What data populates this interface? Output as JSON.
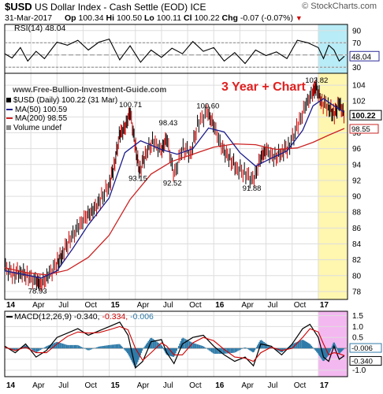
{
  "header": {
    "symbol": "$USD",
    "name": "US Dollar Index - Cash Settle (EOD)",
    "exchange": "ICE",
    "watermark": "© StockCharts.com",
    "date": "31-Mar-2017",
    "op_label": "Op",
    "op": "100.34",
    "hi_label": "Hi",
    "hi": "100.50",
    "lo_label": "Lo",
    "lo": "100.11",
    "cl_label": "Cl",
    "cl": "100.22",
    "chg_label": "Chg",
    "chg": "-0.07 (-0.07%)",
    "chg_symbol": "▼"
  },
  "site": "www.Free-Bullion-Investment-Guide.com",
  "overlay_title": "3 Year + Chart",
  "colors": {
    "price": "#000000",
    "ma50": "#1c1c8c",
    "ma200": "#cc2222",
    "up": "#000000",
    "down": "#cc0000",
    "rsi": "#000000",
    "macd": "#000000",
    "signal": "#cc0000",
    "hist": "#2e7aa8",
    "shade_price": "#fff6b0",
    "shade_rsi": "#b8ecf6",
    "shade_macd": "#f4b8f0",
    "rsi_label_bg": "#2a2a99"
  },
  "chart_data": [
    {
      "type": "line",
      "name": "RSI panel",
      "legend": "RSI(14) 48.04",
      "ylim": [
        20,
        100
      ],
      "yticks": [
        "90",
        "70",
        "50",
        "30"
      ],
      "ytick_values": [
        90,
        70,
        50,
        30
      ],
      "guides": [
        70,
        30
      ],
      "last_label": "48.04",
      "series": [
        {
          "name": "RSI(14)",
          "x": [
            2014.0,
            2014.07,
            2014.15,
            2014.22,
            2014.3,
            2014.38,
            2014.45,
            2014.5,
            2014.6,
            2014.7,
            2014.8,
            2014.9,
            2015.0,
            2015.1,
            2015.2,
            2015.3,
            2015.4,
            2015.5,
            2015.6,
            2015.7,
            2015.8,
            2015.9,
            2016.0,
            2016.1,
            2016.2,
            2016.3,
            2016.4,
            2016.5,
            2016.6,
            2016.7,
            2016.8,
            2016.9,
            2017.0,
            2017.05,
            2017.1,
            2017.15,
            2017.2,
            2017.25
          ],
          "values": [
            52,
            45,
            62,
            40,
            56,
            44,
            60,
            71,
            66,
            74,
            58,
            71,
            76,
            42,
            65,
            38,
            58,
            46,
            61,
            52,
            72,
            56,
            62,
            40,
            54,
            36,
            58,
            49,
            55,
            44,
            74,
            70,
            62,
            44,
            66,
            58,
            40,
            48.04
          ]
        }
      ]
    },
    {
      "type": "line",
      "name": "Price panel",
      "legend": [
        "$USD (Daily) 100.22 (31 Mar)",
        "MA(50) 100.59",
        "MA(200) 98.55",
        "Volume undef"
      ],
      "ylim": [
        77,
        105.5
      ],
      "yticks": [
        "104",
        "102",
        "100",
        "98",
        "96",
        "94",
        "92",
        "90",
        "88",
        "86",
        "84",
        "82",
        "80",
        "78"
      ],
      "ytick_values": [
        104,
        102,
        100,
        98,
        96,
        94,
        92,
        90,
        88,
        86,
        84,
        82,
        80,
        78
      ],
      "shaded_x": [
        2017.0,
        2017.25
      ],
      "last_labels": [
        "100.22",
        "98.55"
      ],
      "annotations": [
        {
          "text": "78.93",
          "x": 2014.33,
          "y": 78.93
        },
        {
          "text": "100.71",
          "x": 2015.2,
          "y": 100.71
        },
        {
          "text": "93.15",
          "x": 2015.29,
          "y": 93.15
        },
        {
          "text": "98.43",
          "x": 2015.58,
          "y": 98.43
        },
        {
          "text": "92.52",
          "x": 2015.62,
          "y": 92.52
        },
        {
          "text": "100.60",
          "x": 2015.94,
          "y": 100.6
        },
        {
          "text": "91.88",
          "x": 2016.38,
          "y": 91.88
        },
        {
          "text": "103.82",
          "x": 2016.98,
          "y": 103.82
        }
      ],
      "series": [
        {
          "name": "$USD",
          "x": [
            2014.0,
            2014.08,
            2014.15,
            2014.22,
            2014.3,
            2014.35,
            2014.42,
            2014.5,
            2014.55,
            2014.62,
            2014.7,
            2014.78,
            2014.85,
            2014.92,
            2015.0,
            2015.05,
            2015.1,
            2015.15,
            2015.2,
            2015.25,
            2015.29,
            2015.35,
            2015.42,
            2015.5,
            2015.55,
            2015.62,
            2015.7,
            2015.78,
            2015.85,
            2015.94,
            2016.0,
            2016.08,
            2016.15,
            2016.22,
            2016.3,
            2016.38,
            2016.45,
            2016.5,
            2016.58,
            2016.65,
            2016.72,
            2016.8,
            2016.88,
            2016.95,
            2016.98,
            2017.03,
            2017.1,
            2017.15,
            2017.2,
            2017.25
          ],
          "values": [
            81.0,
            80.2,
            80.5,
            79.9,
            79.3,
            78.93,
            80.0,
            81.5,
            82.7,
            84.5,
            86.0,
            87.5,
            88.2,
            89.6,
            91.5,
            94.0,
            97.8,
            98.6,
            100.71,
            96.3,
            93.15,
            95.5,
            96.9,
            95.7,
            97.4,
            92.52,
            96.1,
            95.4,
            99.2,
            100.6,
            98.9,
            96.0,
            94.8,
            93.6,
            92.9,
            91.88,
            94.9,
            95.8,
            94.8,
            95.6,
            96.3,
            98.7,
            101.5,
            103.2,
            103.82,
            101.9,
            101.3,
            100.2,
            101.7,
            100.22
          ]
        },
        {
          "name": "MA(50)",
          "x": [
            2014.0,
            2014.2,
            2014.35,
            2014.5,
            2014.65,
            2014.8,
            2015.0,
            2015.15,
            2015.3,
            2015.5,
            2015.65,
            2015.8,
            2015.95,
            2016.1,
            2016.25,
            2016.4,
            2016.55,
            2016.7,
            2016.85,
            2016.95,
            2017.05,
            2017.15,
            2017.25
          ],
          "values": [
            80.6,
            80.1,
            79.7,
            80.6,
            83.4,
            86.4,
            89.8,
            95.5,
            97.0,
            95.9,
            95.3,
            96.0,
            98.6,
            98.1,
            95.5,
            93.8,
            94.8,
            95.7,
            98.3,
            101.4,
            102.3,
            101.4,
            100.59
          ]
        },
        {
          "name": "MA(200)",
          "x": [
            2014.0,
            2014.2,
            2014.4,
            2014.6,
            2014.8,
            2015.0,
            2015.2,
            2015.4,
            2015.6,
            2015.8,
            2016.0,
            2016.2,
            2016.4,
            2016.6,
            2016.8,
            2016.95,
            2017.1,
            2017.25
          ],
          "values": [
            81.0,
            80.4,
            80.1,
            80.7,
            82.3,
            85.1,
            89.6,
            92.8,
            94.4,
            95.3,
            96.2,
            96.6,
            96.5,
            95.9,
            96.1,
            96.8,
            97.7,
            98.55
          ]
        }
      ]
    },
    {
      "type": "line",
      "name": "MACD panel",
      "legend": [
        "MACD(12,26,9)",
        "-0.340,",
        "-0.334,",
        "-0.006"
      ],
      "ylim": [
        -1.3,
        1.7
      ],
      "yticks": [
        "1.5",
        "1.0",
        "0.5",
        "0.0",
        "-0.5",
        "-1.0"
      ],
      "ytick_values": [
        1.5,
        1.0,
        0.5,
        0.0,
        -0.5,
        -1.0
      ],
      "last_labels": [
        "-0.006",
        "-0.340"
      ],
      "series": [
        {
          "name": "MACD",
          "x": [
            2014.0,
            2014.1,
            2014.2,
            2014.3,
            2014.4,
            2014.5,
            2014.6,
            2014.7,
            2014.8,
            2014.9,
            2015.0,
            2015.1,
            2015.18,
            2015.25,
            2015.32,
            2015.4,
            2015.5,
            2015.55,
            2015.62,
            2015.7,
            2015.8,
            2015.9,
            2016.0,
            2016.1,
            2016.2,
            2016.3,
            2016.38,
            2016.45,
            2016.55,
            2016.65,
            2016.75,
            2016.85,
            2016.92,
            2017.0,
            2017.05,
            2017.1,
            2017.15,
            2017.2,
            2017.25
          ],
          "values": [
            0.1,
            -0.2,
            0.2,
            -0.4,
            -0.1,
            0.5,
            0.7,
            0.9,
            0.6,
            0.8,
            1.0,
            1.2,
            0.6,
            -0.9,
            -0.6,
            0.3,
            0.4,
            -0.2,
            -0.7,
            0.2,
            0.5,
            0.6,
            0.1,
            -0.3,
            -0.6,
            -0.4,
            -0.8,
            0.2,
            0.1,
            -0.3,
            0.2,
            0.9,
            1.1,
            0.5,
            -0.4,
            -0.6,
            0.1,
            -0.5,
            -0.34
          ]
        },
        {
          "name": "Signal",
          "x": [
            2014.0,
            2014.1,
            2014.2,
            2014.3,
            2014.4,
            2014.5,
            2014.6,
            2014.7,
            2014.8,
            2014.9,
            2015.0,
            2015.1,
            2015.18,
            2015.25,
            2015.32,
            2015.4,
            2015.5,
            2015.55,
            2015.62,
            2015.7,
            2015.8,
            2015.9,
            2016.0,
            2016.1,
            2016.2,
            2016.3,
            2016.38,
            2016.45,
            2016.55,
            2016.65,
            2016.75,
            2016.85,
            2016.92,
            2017.0,
            2017.05,
            2017.1,
            2017.15,
            2017.2,
            2017.25
          ],
          "values": [
            0.05,
            -0.1,
            0.05,
            -0.2,
            -0.2,
            0.2,
            0.55,
            0.75,
            0.7,
            0.72,
            0.85,
            1.0,
            0.85,
            0.0,
            -0.55,
            -0.2,
            0.25,
            0.1,
            -0.3,
            -0.3,
            0.25,
            0.5,
            0.35,
            -0.05,
            -0.4,
            -0.45,
            -0.6,
            -0.2,
            0.05,
            -0.1,
            0.0,
            0.5,
            0.9,
            0.75,
            0.2,
            -0.3,
            -0.2,
            -0.25,
            -0.334
          ]
        }
      ],
      "histogram": {
        "name": "Histogram",
        "x": [
          2014.0,
          2014.1,
          2014.2,
          2014.3,
          2014.4,
          2014.5,
          2014.6,
          2014.7,
          2014.8,
          2014.9,
          2015.0,
          2015.1,
          2015.18,
          2015.25,
          2015.32,
          2015.4,
          2015.5,
          2015.55,
          2015.62,
          2015.7,
          2015.8,
          2015.9,
          2016.0,
          2016.1,
          2016.2,
          2016.3,
          2016.38,
          2016.45,
          2016.55,
          2016.65,
          2016.75,
          2016.85,
          2016.92,
          2017.0,
          2017.05,
          2017.1,
          2017.15,
          2017.2,
          2017.25
        ],
        "values": [
          0.05,
          -0.1,
          0.15,
          -0.2,
          0.1,
          0.3,
          0.15,
          0.15,
          -0.1,
          0.08,
          0.15,
          0.2,
          -0.25,
          -0.9,
          -0.05,
          0.5,
          0.15,
          -0.3,
          -0.4,
          0.5,
          0.25,
          0.1,
          -0.25,
          -0.25,
          -0.2,
          0.05,
          -0.2,
          0.4,
          0.05,
          -0.2,
          0.2,
          0.4,
          0.2,
          -0.25,
          -0.6,
          -0.3,
          0.3,
          -0.25,
          -0.006
        ]
      }
    }
  ],
  "x_axis": {
    "range": [
      2014.0,
      2017.28
    ],
    "ticks": [
      {
        "label": "14",
        "x": 2014.0,
        "bold": true
      },
      {
        "label": "Apr",
        "x": 2014.25
      },
      {
        "label": "Jul",
        "x": 2014.5
      },
      {
        "label": "Oct",
        "x": 2014.75
      },
      {
        "label": "15",
        "x": 2015.0,
        "bold": true
      },
      {
        "label": "Apr",
        "x": 2015.25
      },
      {
        "label": "Jul",
        "x": 2015.5
      },
      {
        "label": "Oct",
        "x": 2015.75
      },
      {
        "label": "16",
        "x": 2016.0,
        "bold": true
      },
      {
        "label": "Apr",
        "x": 2016.25
      },
      {
        "label": "Jul",
        "x": 2016.5
      },
      {
        "label": "Oct",
        "x": 2016.75
      },
      {
        "label": "17",
        "x": 2017.0,
        "bold": true
      }
    ]
  }
}
